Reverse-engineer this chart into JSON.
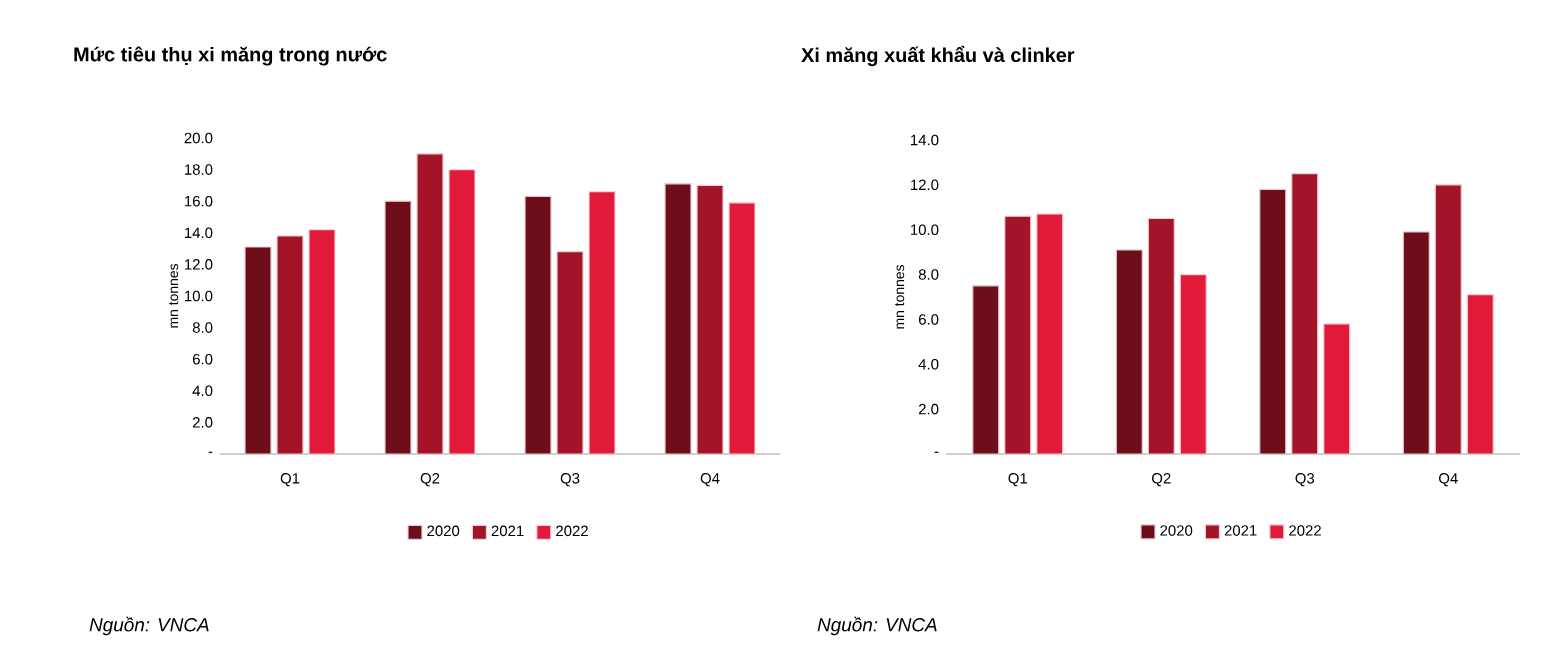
{
  "chart_data": [
    {
      "type": "bar",
      "title": "Mức tiêu thụ xi măng trong nước",
      "ylabel": "mn tonnes",
      "categories": [
        "Q1",
        "Q2",
        "Q3",
        "Q4"
      ],
      "series": [
        {
          "name": "2020",
          "color": "#6d0e1a",
          "values": [
            13.1,
            16.0,
            16.3,
            17.1
          ]
        },
        {
          "name": "2021",
          "color": "#a31428",
          "values": [
            13.8,
            19.0,
            12.8,
            17.0
          ]
        },
        {
          "name": "2022",
          "color": "#e01a38",
          "values": [
            14.2,
            18.0,
            16.6,
            15.9
          ]
        }
      ],
      "ylim": [
        0,
        20
      ],
      "yticks": [
        {
          "value": 0,
          "label": "-"
        },
        {
          "value": 2,
          "label": "2.0"
        },
        {
          "value": 4,
          "label": "4.0"
        },
        {
          "value": 6,
          "label": "6.0"
        },
        {
          "value": 8,
          "label": "8.0"
        },
        {
          "value": 10,
          "label": "10.0"
        },
        {
          "value": 12,
          "label": "12.0"
        },
        {
          "value": 14,
          "label": "14.0"
        },
        {
          "value": 16,
          "label": "16.0"
        },
        {
          "value": 18,
          "label": "18.0"
        },
        {
          "value": 20,
          "label": "20.0"
        }
      ],
      "legend": "bottom",
      "annotations": [
        "Nguồn: VNCA"
      ]
    },
    {
      "type": "bar",
      "title": "Xi măng xuất khẩu và clinker",
      "ylabel": "mn tonnes",
      "categories": [
        "Q1",
        "Q2",
        "Q3",
        "Q4"
      ],
      "series": [
        {
          "name": "2020",
          "color": "#6d0e1a",
          "values": [
            7.5,
            9.1,
            11.8,
            9.9
          ]
        },
        {
          "name": "2021",
          "color": "#a31428",
          "values": [
            10.6,
            10.5,
            12.5,
            12.0
          ]
        },
        {
          "name": "2022",
          "color": "#e01a38",
          "values": [
            10.7,
            8.0,
            5.8,
            7.1
          ]
        }
      ],
      "ylim": [
        0,
        14
      ],
      "yticks": [
        {
          "value": 0,
          "label": "-"
        },
        {
          "value": 2,
          "label": "2.0"
        },
        {
          "value": 4,
          "label": "4.0"
        },
        {
          "value": 6,
          "label": "6.0"
        },
        {
          "value": 8,
          "label": "8.0"
        },
        {
          "value": 10,
          "label": "10.0"
        },
        {
          "value": 12,
          "label": "12.0"
        },
        {
          "value": 14,
          "label": "14.0"
        }
      ],
      "legend": "bottom",
      "annotations": [
        "Nguồn: VNCA"
      ]
    }
  ]
}
